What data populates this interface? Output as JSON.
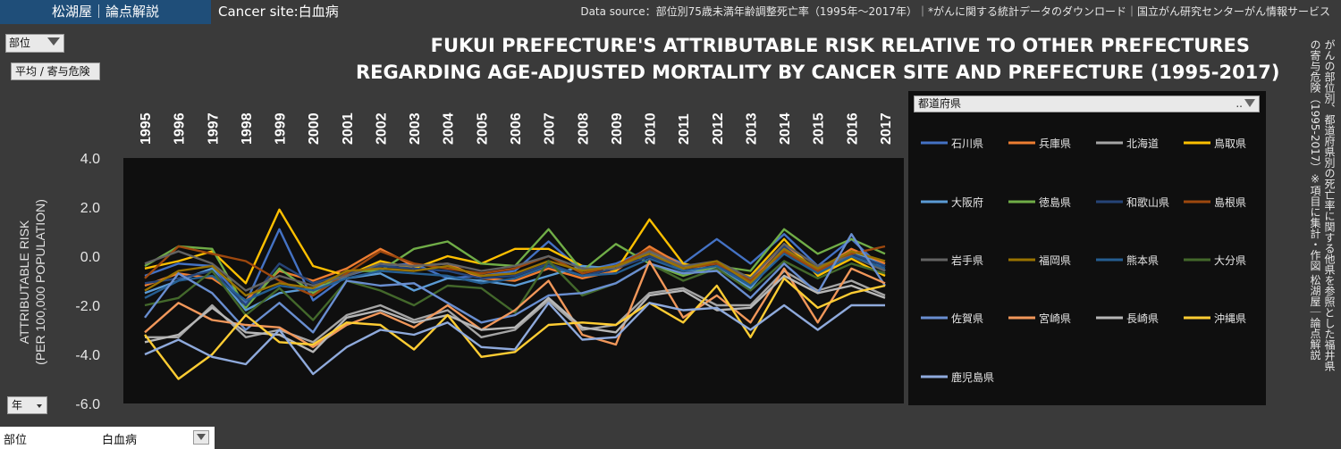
{
  "header": {
    "brand": "松湖屋｜論点解説",
    "site_label": "Cancer site:白血病",
    "source": "Data source：部位別75歳未満年齢調整死亡率（1995年～2017年）｜*がんに関する統計データのダウンロード｜国立がん研究センターがん情報サービス"
  },
  "controls": {
    "site_filter": "部位",
    "mode_button": "平均 / 寄与危険",
    "year_filter": "年",
    "legend_filter": "都道府県",
    "legend_ellipsis": "..",
    "bottom_key": "部位",
    "bottom_value": "白血病"
  },
  "side_note": "がんの部位別、都道府県別の死亡率に関する他県を参照とした福井県の寄与危険（1995-2017）※項目に集計・作図 松湖屋｜論点解説",
  "colors": {
    "accent": "#1f4e79",
    "plot_bg": "#0f0f0f",
    "page_bg": "#3a3a3a"
  },
  "chart_data": {
    "type": "line",
    "title_lines": [
      "FUKUI PREFECTURE'S ATTRIBUTABLE RISK RELATIVE TO OTHER PREFECTURES",
      "REGARDING AGE-ADJUSTED MORTALITY BY CANCER SITE AND PREFECTURE (1995-2017)"
    ],
    "ylabel_lines": [
      "ATTRIBUTABLE RISK",
      "(PER 100,000 POPULATION)"
    ],
    "ylim": [
      -6,
      4
    ],
    "yticks": [
      "4.0",
      "2.0",
      "0.0",
      "-2.0",
      "-4.0",
      "-6.0"
    ],
    "ytick_values": [
      4,
      2,
      0,
      -2,
      -4,
      -6
    ],
    "x": [
      "1995",
      "1996",
      "1997",
      "1998",
      "1999",
      "2000",
      "2001",
      "2002",
      "2003",
      "2004",
      "2005",
      "2006",
      "2007",
      "2008",
      "2009",
      "2010",
      "2011",
      "2012",
      "2013",
      "2014",
      "2015",
      "2016",
      "2017"
    ],
    "grid": false,
    "legend_position": "right",
    "series": [
      {
        "name": "石川県",
        "color": "#4472c4",
        "values": [
          -0.8,
          -0.3,
          -0.4,
          -1.9,
          1.1,
          -1.8,
          -0.8,
          -0.4,
          -0.3,
          -0.9,
          -0.8,
          -0.6,
          0.6,
          -0.6,
          -0.3,
          0.3,
          -0.3,
          0.7,
          -0.3,
          0.9,
          -0.4,
          0.7,
          -0.6
        ]
      },
      {
        "name": "兵庫県",
        "color": "#ed7d31",
        "values": [
          -1.2,
          -0.7,
          -0.9,
          -1.8,
          -0.6,
          -1.0,
          -0.5,
          0.3,
          -0.4,
          -0.3,
          -0.9,
          -1.0,
          -0.5,
          -0.9,
          -0.6,
          0.4,
          -0.4,
          -0.5,
          -1.0,
          0.5,
          -0.6,
          0.3,
          -0.3
        ]
      },
      {
        "name": "北海道",
        "color": "#a5a5a5",
        "values": [
          -3.3,
          -3.3,
          -2.0,
          -3.3,
          -3.0,
          -3.5,
          -2.4,
          -2.0,
          -2.6,
          -2.2,
          -3.3,
          -3.0,
          -1.8,
          -3.0,
          -2.8,
          -1.5,
          -1.3,
          -2.0,
          -2.0,
          -0.6,
          -1.4,
          -1.0,
          -1.6
        ]
      },
      {
        "name": "鳥取県",
        "color": "#ffc000",
        "values": [
          -0.5,
          -0.2,
          0.2,
          -1.1,
          1.9,
          -0.4,
          -0.8,
          -0.2,
          -0.5,
          0.0,
          -0.3,
          0.3,
          0.3,
          -0.4,
          -0.6,
          1.5,
          -0.3,
          -0.6,
          -0.8,
          0.7,
          -0.8,
          -0.1,
          -0.8
        ]
      },
      {
        "name": "大阪府",
        "color": "#5b9bd5",
        "values": [
          -1.5,
          -1.0,
          -0.5,
          -2.2,
          -1.5,
          -1.3,
          -0.9,
          -0.7,
          -1.4,
          -0.9,
          -1.0,
          -1.2,
          -0.8,
          -0.4,
          -0.5,
          0.2,
          -0.6,
          -0.5,
          -1.3,
          0.3,
          -0.5,
          0.2,
          -0.4
        ]
      },
      {
        "name": "徳島県",
        "color": "#70ad47",
        "values": [
          -0.4,
          0.4,
          0.3,
          -2.1,
          -0.5,
          -1.5,
          -0.6,
          -0.6,
          0.3,
          0.6,
          -0.3,
          -0.4,
          1.1,
          -0.6,
          0.5,
          -0.3,
          -0.8,
          -0.4,
          -0.6,
          1.1,
          0.1,
          0.7,
          0.1
        ]
      },
      {
        "name": "和歌山県",
        "color": "#264478",
        "values": [
          -1.1,
          -0.9,
          -0.6,
          -2.0,
          -0.3,
          -1.1,
          -0.7,
          -0.4,
          -0.5,
          -0.6,
          -0.9,
          -0.8,
          -0.3,
          -0.8,
          -0.5,
          0.0,
          -0.5,
          -0.3,
          -1.2,
          0.4,
          -0.7,
          0.1,
          -0.4
        ]
      },
      {
        "name": "島根県",
        "color": "#9e480e",
        "values": [
          -0.9,
          0.4,
          0.1,
          -0.2,
          -1.0,
          -1.6,
          -0.7,
          0.2,
          -0.3,
          -0.5,
          -0.7,
          -0.5,
          0.0,
          -0.7,
          -0.4,
          0.3,
          -0.5,
          -0.3,
          -1.0,
          0.2,
          -0.6,
          0.1,
          0.4
        ]
      },
      {
        "name": "岩手県",
        "color": "#636363",
        "values": [
          -0.3,
          0.2,
          -0.3,
          -1.4,
          -0.8,
          -1.2,
          -0.8,
          -0.3,
          -0.4,
          -0.3,
          -0.6,
          -0.4,
          0.0,
          -0.5,
          -0.5,
          0.2,
          -0.4,
          -0.2,
          -0.9,
          0.5,
          -0.4,
          0.0,
          -0.6
        ]
      },
      {
        "name": "福岡県",
        "color": "#997300",
        "values": [
          -1.4,
          -0.6,
          -0.4,
          -1.6,
          -1.1,
          -1.3,
          -0.6,
          -0.5,
          -0.6,
          -0.4,
          -0.8,
          -0.7,
          -0.2,
          -0.6,
          -0.4,
          0.1,
          -0.5,
          -0.2,
          -1.1,
          0.3,
          -0.5,
          0.2,
          -0.2
        ]
      },
      {
        "name": "熊本県",
        "color": "#255e91",
        "values": [
          -1.7,
          -1.0,
          -0.8,
          -1.8,
          -1.2,
          -1.4,
          -0.9,
          -0.6,
          -0.7,
          -0.8,
          -1.1,
          -0.9,
          -0.4,
          -0.8,
          -0.7,
          -0.1,
          -0.6,
          -0.4,
          -1.2,
          0.1,
          -0.7,
          0.0,
          -0.5
        ]
      },
      {
        "name": "大分県",
        "color": "#43682b",
        "values": [
          -2.0,
          -1.7,
          -0.6,
          -2.4,
          -1.3,
          -2.6,
          -1.0,
          -1.4,
          -2.0,
          -1.2,
          -1.3,
          -2.3,
          -0.2,
          -1.6,
          -1.1,
          -0.3,
          -1.0,
          -0.5,
          -1.4,
          -0.2,
          -0.9,
          -0.3,
          -0.7
        ]
      },
      {
        "name": "佐賀県",
        "color": "#698ed0",
        "values": [
          -2.5,
          -0.7,
          -1.5,
          -3.0,
          -1.9,
          -3.1,
          -1.0,
          -1.2,
          -1.1,
          -1.9,
          -2.7,
          -2.4,
          -1.6,
          -1.5,
          -1.1,
          -0.3,
          -0.7,
          -0.6,
          -1.7,
          -0.3,
          -1.5,
          0.9,
          -1.2
        ]
      },
      {
        "name": "宮崎県",
        "color": "#f1975a",
        "values": [
          -3.1,
          -1.9,
          -2.6,
          -2.8,
          -2.9,
          -3.7,
          -2.8,
          -2.3,
          -2.9,
          -2.0,
          -3.0,
          -2.2,
          -1.0,
          -3.2,
          -3.6,
          -0.2,
          -2.5,
          -1.6,
          -2.7,
          -0.5,
          -2.7,
          -0.5,
          -1.1
        ]
      },
      {
        "name": "長崎県",
        "color": "#b7b7b7",
        "values": [
          -3.5,
          -3.2,
          -2.1,
          -3.1,
          -3.2,
          -3.9,
          -2.5,
          -2.2,
          -2.7,
          -2.4,
          -3.0,
          -2.9,
          -1.7,
          -2.9,
          -3.1,
          -1.6,
          -1.4,
          -2.2,
          -2.1,
          -0.8,
          -1.5,
          -1.2,
          -1.7
        ]
      },
      {
        "name": "沖縄県",
        "color": "#ffcd33",
        "values": [
          -3.2,
          -5.0,
          -4.0,
          -2.4,
          -3.5,
          -3.6,
          -2.7,
          -2.8,
          -3.8,
          -2.4,
          -4.1,
          -3.9,
          -2.8,
          -2.7,
          -2.8,
          -1.9,
          -2.7,
          -1.2,
          -3.3,
          -0.9,
          -2.1,
          -1.5,
          -1.2
        ]
      },
      {
        "name": "鹿児島県",
        "color": "#8faadc",
        "values": [
          -4.0,
          -3.4,
          -4.1,
          -4.4,
          -3.0,
          -4.8,
          -3.7,
          -3.0,
          -3.2,
          -2.7,
          -3.7,
          -3.8,
          -1.9,
          -3.4,
          -3.3,
          -1.9,
          -2.2,
          -2.1,
          -3.0,
          -2.0,
          -3.0,
          -2.0,
          -2.0
        ]
      }
    ]
  }
}
